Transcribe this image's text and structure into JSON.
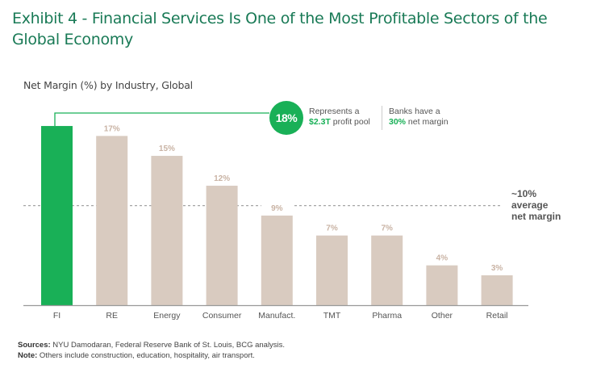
{
  "title": "Exhibit 4 - Financial Services Is One of the Most Profitable Sectors of the Global Economy",
  "subtitle": "Net Margin (%) by Industry, Global",
  "callout": {
    "badge": "18%",
    "line1a": "Represents a",
    "line1b_bold": "$2.3T",
    "line1b_rest": " profit pool",
    "line2a": "Banks have a",
    "line2b_bold": "30%",
    "line2b_rest": " net margin"
  },
  "average": {
    "line1": "~10%",
    "line2": "average",
    "line3": "net margin"
  },
  "footer": {
    "sources_label": "Sources:",
    "sources_text": " NYU Damodaran, Federal Reserve Bank of St. Louis, BCG analysis.",
    "note_label": "Note:",
    "note_text": " Others include construction, education, hospitality, air transport."
  },
  "colors": {
    "highlight": "#19b057",
    "bar": "#d9cbc0",
    "label": "#c9b3a4",
    "title": "#197a56",
    "dashed": "#999999"
  },
  "chart_data": {
    "type": "bar",
    "title": "Net Margin (%) by Industry, Global",
    "xlabel": "",
    "ylabel": "Net Margin (%)",
    "categories": [
      "FI",
      "RE",
      "Energy",
      "Consumer",
      "Manufact.",
      "TMT",
      "Pharma",
      "Other",
      "Retail"
    ],
    "values": [
      18,
      17,
      15,
      12,
      9,
      7,
      7,
      4,
      3
    ],
    "data_labels": [
      "",
      "17%",
      "15%",
      "12%",
      "9%",
      "7%",
      "7%",
      "4%",
      "3%"
    ],
    "highlight_index": 0,
    "reference_line": {
      "value": 10,
      "label": "~10% average net margin",
      "style": "dashed"
    },
    "ylim": [
      0,
      18
    ],
    "grid": false,
    "legend": "none"
  }
}
